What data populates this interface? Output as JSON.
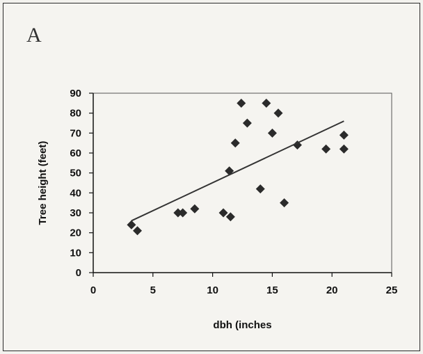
{
  "panel_label": "A",
  "chart_data": {
    "type": "scatter",
    "title": "",
    "xlabel": "dbh (inches",
    "ylabel": "Tree height (feet)",
    "xlim": [
      0,
      25
    ],
    "ylim": [
      0,
      90
    ],
    "xticks": [
      0,
      5,
      10,
      15,
      20,
      25
    ],
    "yticks": [
      0,
      10,
      20,
      30,
      40,
      50,
      60,
      70,
      80,
      90
    ],
    "marker": "diamond",
    "marker_color": "#2b2b2b",
    "grid": false,
    "legend": "none",
    "points": [
      {
        "x": 3.2,
        "y": 24
      },
      {
        "x": 3.7,
        "y": 21
      },
      {
        "x": 7.1,
        "y": 30
      },
      {
        "x": 7.5,
        "y": 30
      },
      {
        "x": 8.5,
        "y": 32
      },
      {
        "x": 10.9,
        "y": 30
      },
      {
        "x": 11.5,
        "y": 28
      },
      {
        "x": 11.4,
        "y": 51
      },
      {
        "x": 11.9,
        "y": 65
      },
      {
        "x": 12.4,
        "y": 85
      },
      {
        "x": 12.9,
        "y": 75
      },
      {
        "x": 14.0,
        "y": 42
      },
      {
        "x": 14.5,
        "y": 85
      },
      {
        "x": 15.0,
        "y": 70
      },
      {
        "x": 15.5,
        "y": 80
      },
      {
        "x": 16.0,
        "y": 35
      },
      {
        "x": 17.1,
        "y": 64
      },
      {
        "x": 19.5,
        "y": 62
      },
      {
        "x": 21.0,
        "y": 69
      },
      {
        "x": 21.0,
        "y": 62
      }
    ],
    "trendline": {
      "x": [
        3.2,
        21.0
      ],
      "y": [
        26,
        76
      ]
    }
  }
}
